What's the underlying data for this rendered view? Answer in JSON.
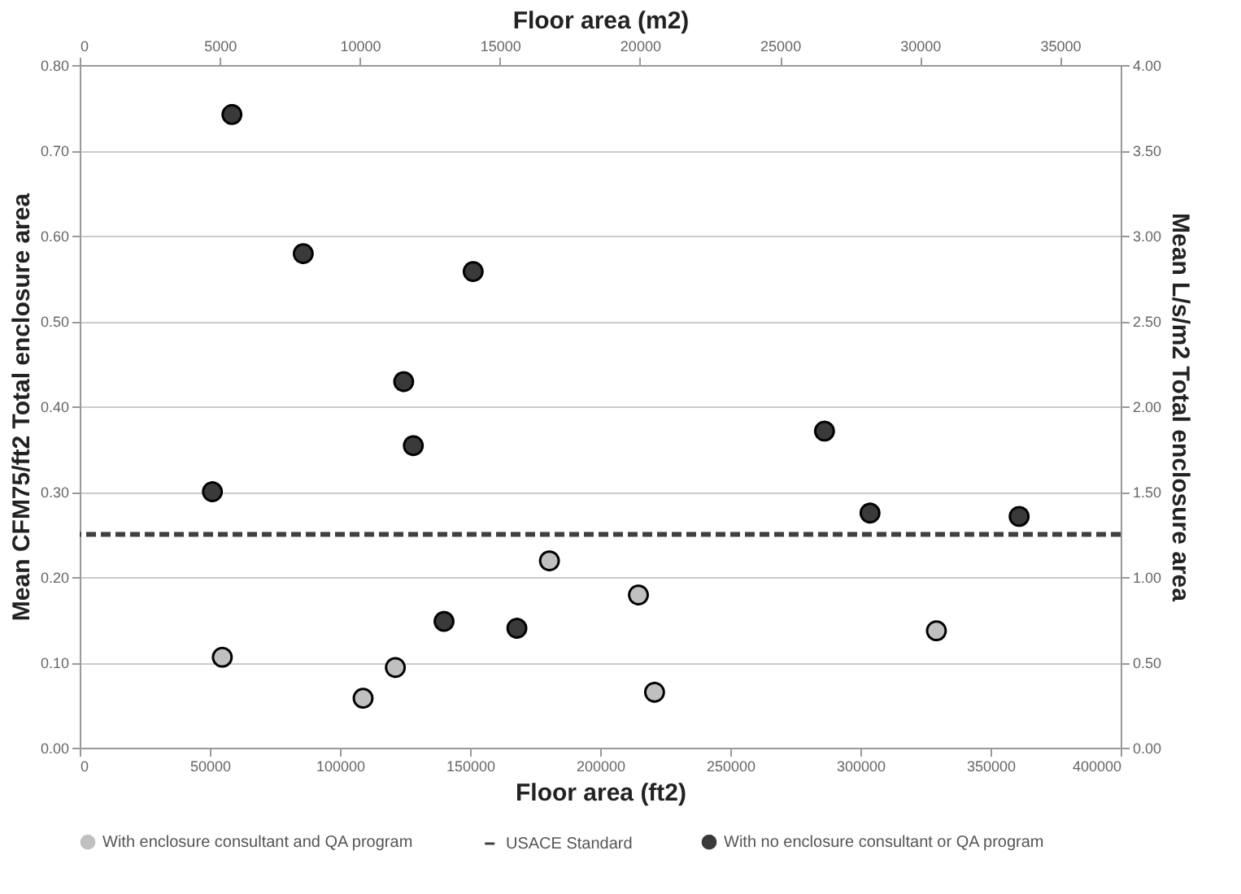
{
  "chart_data": {
    "type": "scatter",
    "xlabel": "Floor area (ft2)",
    "ylabel": "Mean CFM75/ft2 Total enclosure area",
    "x2label": "Floor area (m2)",
    "y2label": "Mean L/s/m2 Total enclosure area",
    "series": [
      {
        "name": "With enclosure consultant and QA program",
        "color": "#c0c0c0",
        "x": [
          54800,
          108900,
          121300,
          180500,
          214700,
          220900,
          329200
        ],
        "values": [
          0.106,
          0.058,
          0.094,
          0.219,
          0.179,
          0.065,
          0.137
        ]
      },
      {
        "name": "With no enclosure consultant or QA program",
        "color": "#3a3a3a",
        "x": [
          58500,
          85900,
          151200,
          124500,
          128200,
          51000,
          140000,
          168000,
          286200,
          303700,
          361000
        ],
        "values": [
          0.742,
          0.579,
          0.558,
          0.429,
          0.354,
          0.3,
          0.148,
          0.14,
          0.371,
          0.275,
          0.271
        ]
      }
    ],
    "ref_lines": [
      {
        "axis": "y",
        "value": 0.25,
        "label": "USACE Standard",
        "color": "#404040",
        "line_style": "dashed"
      }
    ],
    "xlim": [
      0,
      400000
    ],
    "xticks": [
      0,
      50000,
      100000,
      150000,
      200000,
      250000,
      300000,
      350000,
      400000
    ],
    "ylim": [
      0,
      0.8
    ],
    "yticks": [
      {
        "value": 0,
        "label": "0.00"
      },
      {
        "value": 0.1,
        "label": "0.10"
      },
      {
        "value": 0.2,
        "label": "0.20"
      },
      {
        "value": 0.3,
        "label": "0.30"
      },
      {
        "value": 0.4,
        "label": "0.40"
      },
      {
        "value": 0.5,
        "label": "0.50"
      },
      {
        "value": 0.6,
        "label": "0.60"
      },
      {
        "value": 0.7,
        "label": "0.70"
      },
      {
        "value": 0.8,
        "label": "0.80"
      }
    ],
    "x2lim": [
      0,
      37161
    ],
    "x2ticks": [
      0,
      5000,
      10000,
      15000,
      20000,
      25000,
      30000,
      35000
    ],
    "y2lim": [
      0,
      4
    ],
    "y2ticks": [
      {
        "value": 0,
        "label": "0.00"
      },
      {
        "value": 0.5,
        "label": "0.50"
      },
      {
        "value": 1,
        "label": "1.00"
      },
      {
        "value": 1.5,
        "label": "1.50"
      },
      {
        "value": 2,
        "label": "2.00"
      },
      {
        "value": 2.5,
        "label": "2.50"
      },
      {
        "value": 3,
        "label": "3.00"
      },
      {
        "value": 3.5,
        "label": "3.50"
      },
      {
        "value": 4,
        "label": "4.00"
      }
    ],
    "grid": "y",
    "legend": "bottom",
    "marker": "circle"
  }
}
